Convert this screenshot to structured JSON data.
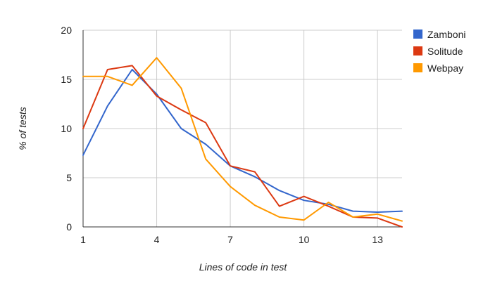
{
  "chart_data": {
    "type": "line",
    "title": "",
    "xlabel": "Lines of code in test",
    "ylabel": "% of tests",
    "x": [
      1,
      2,
      3,
      4,
      5,
      6,
      7,
      8,
      9,
      10,
      11,
      12,
      13,
      14
    ],
    "xlim": [
      1,
      14
    ],
    "ylim": [
      0,
      20
    ],
    "x_ticks": [
      1,
      4,
      7,
      10,
      13
    ],
    "y_ticks": [
      0,
      5,
      10,
      15,
      20
    ],
    "grid": true,
    "legend_position": "right",
    "series": [
      {
        "name": "Zamboni",
        "color": "#3366cc",
        "values": [
          7.3,
          12.3,
          16.0,
          13.5,
          10.0,
          8.4,
          6.2,
          5.1,
          3.7,
          2.7,
          2.3,
          1.6,
          1.5,
          1.6
        ]
      },
      {
        "name": "Solitude",
        "color": "#dc3912",
        "values": [
          10.0,
          16.0,
          16.4,
          13.3,
          11.9,
          10.6,
          6.2,
          5.6,
          2.1,
          3.1,
          2.1,
          1.0,
          0.9,
          0.0
        ]
      },
      {
        "name": "Webpay",
        "color": "#ff9900",
        "values": [
          15.3,
          15.3,
          14.4,
          17.2,
          14.1,
          6.9,
          4.1,
          2.2,
          1.0,
          0.7,
          2.5,
          1.0,
          1.3,
          0.6
        ]
      }
    ]
  }
}
